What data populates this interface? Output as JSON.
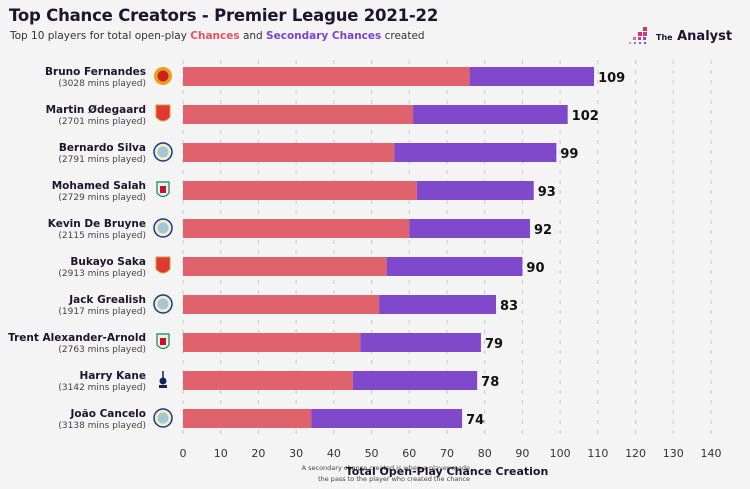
{
  "header": {
    "title": "Top Chance Creators - Premier League 2021-22",
    "subtitle_pre": "Top 10 players for total open-play ",
    "subtitle_chances": "Chances",
    "subtitle_mid": " and ",
    "subtitle_secondary": "Secondary Chances",
    "subtitle_post": " created",
    "logo_the": "The",
    "logo_name": "Analyst"
  },
  "colors": {
    "chances": "#e0626c",
    "secondary": "#8049cc",
    "grid": "#c8c8cc",
    "background": "#f4f4f5"
  },
  "chart_data": {
    "type": "bar",
    "orientation": "horizontal",
    "stacked": true,
    "title": "Top Chance Creators - Premier League 2021-22",
    "subtitle": "Top 10 players for total open-play Chances and Secondary Chances created",
    "xlabel": "Total Open-Play Chance Creation",
    "ylabel": "",
    "xlim": [
      0,
      140
    ],
    "xticks": [
      0,
      10,
      20,
      30,
      40,
      50,
      60,
      70,
      80,
      90,
      100,
      110,
      120,
      130,
      140
    ],
    "grid": "vertical dashed",
    "footnote": [
      "A secondary chance created is when a player made",
      "the pass to the player who created the chance"
    ],
    "categories": [
      {
        "name": "Bruno Fernandes",
        "mins": "(3028 mins played)",
        "club_icon": "manchester-united-crest"
      },
      {
        "name": "Martin Ødegaard",
        "mins": "(2701 mins played)",
        "club_icon": "arsenal-crest"
      },
      {
        "name": "Bernardo Silva",
        "mins": "(2791 mins played)",
        "club_icon": "manchester-city-crest"
      },
      {
        "name": "Mohamed Salah",
        "mins": "(2729 mins played)",
        "club_icon": "liverpool-crest"
      },
      {
        "name": "Kevin De Bruyne",
        "mins": "(2115 mins played)",
        "club_icon": "manchester-city-crest"
      },
      {
        "name": "Bukayo Saka",
        "mins": "(2913 mins played)",
        "club_icon": "arsenal-crest"
      },
      {
        "name": "Jack Grealish",
        "mins": "(1917 mins played)",
        "club_icon": "manchester-city-crest"
      },
      {
        "name": "Trent Alexander-Arnold",
        "mins": "(2763 mins played)",
        "club_icon": "liverpool-crest"
      },
      {
        "name": "Harry Kane",
        "mins": "(3142 mins played)",
        "club_icon": "tottenham-crest"
      },
      {
        "name": "João Cancelo",
        "mins": "(3138 mins played)",
        "club_icon": "manchester-city-crest"
      }
    ],
    "series": [
      {
        "name": "Chances",
        "values": [
          76,
          61,
          56,
          62,
          60,
          54,
          52,
          47,
          45,
          34
        ]
      },
      {
        "name": "Secondary Chances",
        "values": [
          33,
          41,
          43,
          31,
          32,
          36,
          31,
          32,
          33,
          40
        ]
      }
    ],
    "totals": [
      109,
      102,
      99,
      93,
      92,
      90,
      83,
      79,
      78,
      74
    ]
  }
}
